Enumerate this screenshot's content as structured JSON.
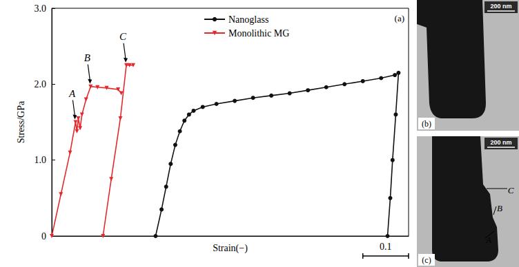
{
  "chart_data": {
    "type": "line",
    "xlabel": "Strain(−)",
    "ylabel": "Stress/GPa",
    "xlim": [
      0,
      0.78
    ],
    "ylim": [
      0,
      3
    ],
    "yticks": [
      0,
      {
        "value": 1,
        "label": "1.0"
      },
      {
        "value": 2,
        "label": "2.0"
      },
      {
        "value": 3,
        "label": "3.0"
      }
    ],
    "tick_labels": "y",
    "grid": false,
    "legend": "top",
    "panel_label": "(a)",
    "scale_bar": 0.1,
    "series": [
      {
        "name": "Nanoglass",
        "color": "#111111",
        "marker": "circle",
        "line_style": "solid",
        "x": [
          0.227,
          0.24,
          0.25,
          0.26,
          0.27,
          0.28,
          0.29,
          0.3,
          0.31,
          0.33,
          0.36,
          0.4,
          0.44,
          0.48,
          0.52,
          0.56,
          0.6,
          0.64,
          0.68,
          0.72,
          0.75,
          0.758,
          0.752,
          0.745,
          0.74,
          0.734
        ],
        "values": [
          0,
          0.35,
          0.65,
          0.95,
          1.2,
          1.38,
          1.52,
          1.6,
          1.65,
          1.7,
          1.74,
          1.78,
          1.82,
          1.85,
          1.88,
          1.92,
          1.96,
          2.0,
          2.04,
          2.08,
          2.12,
          2.15,
          1.6,
          1.0,
          0.5,
          0
        ]
      },
      {
        "name": "Monolithic MG",
        "color": "#e4282b",
        "marker": "triangle_down",
        "line_style": "solid",
        "x": [
          0,
          0.02,
          0.04,
          0.052,
          0.055,
          0.058,
          0.062,
          0.066,
          0.075,
          0.085,
          0.1,
          0.12,
          0.145,
          0.152,
          null,
          0.112,
          0.13,
          0.15,
          0.163,
          0.17,
          0.178
        ],
        "values": [
          0,
          0.55,
          1.1,
          1.5,
          1.38,
          1.55,
          1.42,
          1.6,
          1.8,
          1.97,
          1.96,
          1.95,
          1.93,
          1.88,
          null,
          0,
          0.75,
          1.55,
          2.25,
          2.25,
          2.25
        ]
      }
    ],
    "annotations": [
      {
        "text": "A",
        "x": 0.052,
        "y": 1.5
      },
      {
        "text": "B",
        "x": 0.085,
        "y": 1.97
      },
      {
        "text": "C",
        "x": 0.163,
        "y": 2.25
      }
    ]
  },
  "images": [
    {
      "label": "(b)",
      "scale_bar": "200 nm"
    },
    {
      "label": "(c)",
      "scale_bar": "200 nm",
      "markers": [
        "A",
        "B",
        "C"
      ]
    }
  ]
}
